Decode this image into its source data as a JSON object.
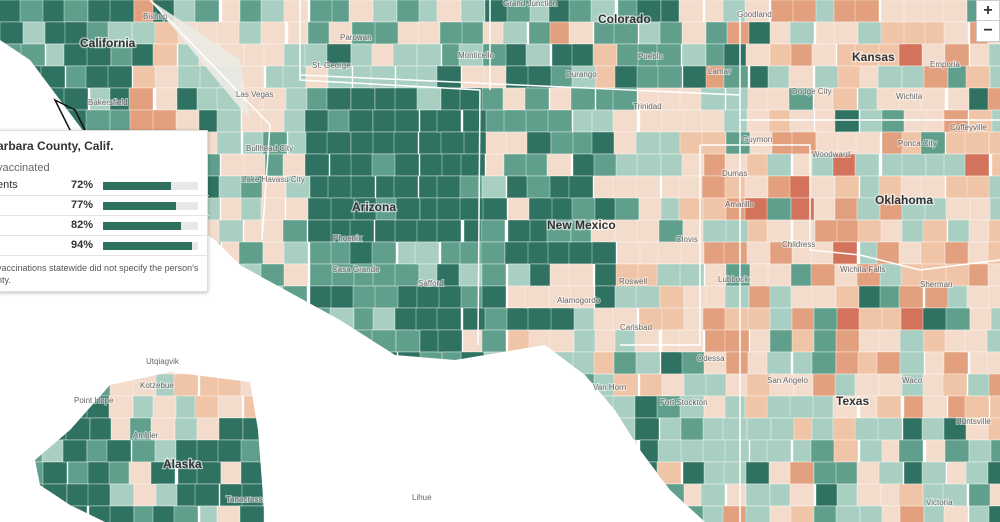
{
  "map": {
    "states": [
      "California",
      "Colorado",
      "Kansas",
      "Arizona",
      "New Mexico",
      "Oklahoma",
      "Texas",
      "Alaska"
    ],
    "cities": [
      "Bishop",
      "Grand Junction",
      "Goodland",
      "Parowan",
      "Pueblo",
      "Emporia",
      "Las Vegas",
      "St. George",
      "Lamar",
      "Dodge City",
      "Wichita",
      "Bakersfield",
      "Trinidad",
      "Guymon",
      "Coffeyville",
      "Bullhead City",
      "Lake Havasu City",
      "Ponca City",
      "Woodward",
      "Dumas",
      "Amarillo",
      "Clovis",
      "Childress",
      "Wichita Falls",
      "Sherman",
      "Phoenix",
      "Casa Grande",
      "Safford",
      "Lubbock",
      "Roswell",
      "Alamogordo",
      "Carlsbad",
      "Odessa",
      "San Angelo",
      "Waco",
      "Van Horn",
      "Fort Stockton",
      "Huntsville",
      "Victoria",
      "Utqiagvik",
      "Kotzebue",
      "Point Hope",
      "Ambler",
      "Tanacross",
      "Lihue",
      "Monticello",
      "Durango"
    ]
  },
  "zoom_controls": [
    "+",
    "−"
  ],
  "tooltip": {
    "title": "arbara County, Calif.",
    "subtitle": "vaccinated",
    "rows": [
      {
        "label": "ents",
        "value": 72,
        "value_label": "72%"
      },
      {
        "value": 77,
        "value_label": "77%"
      },
      {
        "value": 82,
        "value_label": "82%"
      },
      {
        "value": 94,
        "value_label": "94%"
      }
    ],
    "note": [
      "vaccinations statewide did not specify the person's",
      "nty."
    ]
  }
}
